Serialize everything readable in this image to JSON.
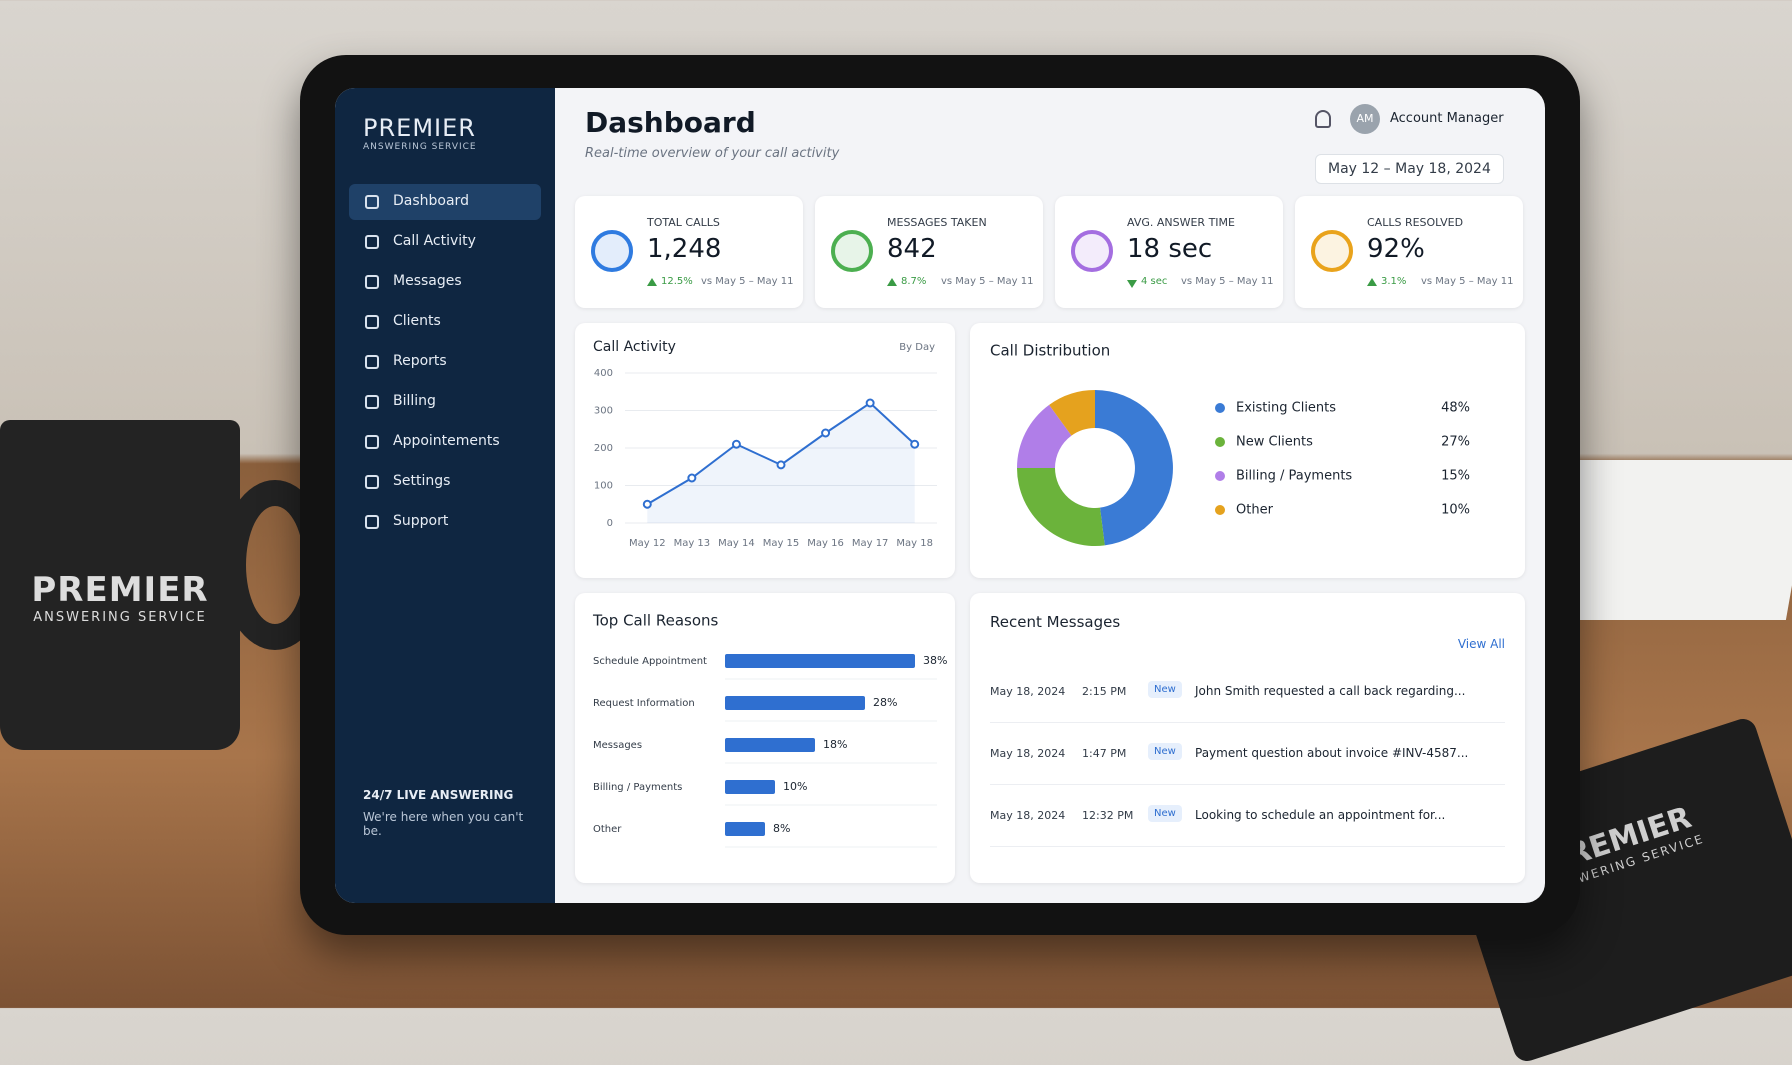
{
  "scene": {
    "mug": {
      "name": "PREMIER",
      "tagline": "ANSWERING SERVICE"
    },
    "notebook": {
      "name": "PREMIER",
      "tagline": "ANSWERING SERVICE"
    }
  },
  "sidebar": {
    "brand": {
      "name": "PREMIER",
      "tagline": "ANSWERING SERVICE"
    },
    "nav": [
      "Dashboard",
      "Call Activity",
      "Messages",
      "Clients",
      "Reports",
      "Billing",
      "Appointements",
      "Settings",
      "Support"
    ],
    "active": 0,
    "footer": {
      "title": "24/7 LIVE ANSWERING",
      "text": "We're here when you can't be."
    }
  },
  "header": {
    "title": "Dashboard",
    "subtitle": "Real-time overview of your call activity",
    "avatar": "AM",
    "user": "Account Manager",
    "date_range": "May 12 – May 18, 2024"
  },
  "kpis": [
    {
      "label": "TOTAL CALLS",
      "value": "1,248",
      "change": "12.5%",
      "compare": "vs May 5 – May 11",
      "trend": "up",
      "color": "#2f7be0"
    },
    {
      "label": "MESSAGES TAKEN",
      "value": "842",
      "change": "8.7%",
      "compare": "vs May 5 – May 11",
      "trend": "up",
      "color": "#4caf50"
    },
    {
      "label": "AVG. ANSWER TIME",
      "value": "18 sec",
      "change": "4 sec",
      "compare": "vs May 5 – May 11",
      "trend": "down",
      "color": "#a46ee0"
    },
    {
      "label": "CALLS RESOLVED",
      "value": "92%",
      "change": "3.1%",
      "compare": "vs May 5 – May 11",
      "trend": "up",
      "color": "#e9a31c"
    }
  ],
  "chart_data": [
    {
      "type": "line",
      "title": "Call Activity",
      "control": "By Day",
      "categories": [
        "May 12",
        "May 13",
        "May 14",
        "May 15",
        "May 16",
        "May 17",
        "May 18"
      ],
      "values": [
        50,
        120,
        210,
        155,
        240,
        320,
        210
      ],
      "color": "#2f6fd0",
      "ylim": [
        0,
        400
      ],
      "yticks": [
        0,
        100,
        200,
        300,
        400
      ],
      "grid": true
    },
    {
      "type": "pie",
      "title": "Call Distribution",
      "categories": [
        "Existing Clients",
        "New Clients",
        "Billing / Payments",
        "Other"
      ],
      "values": [
        48,
        27,
        15,
        10
      ],
      "value_labels": [
        "48%",
        "27%",
        "15%",
        "10%"
      ],
      "colors": [
        "#3a7bd5",
        "#6bb33b",
        "#b07ee8",
        "#e5a21e"
      ]
    },
    {
      "type": "hbar",
      "title": "Top Call Reasons",
      "categories": [
        "Schedule Appointment",
        "Request Information",
        "Messages",
        "Billing / Payments",
        "Other"
      ],
      "values": [
        38,
        28,
        18,
        10,
        8
      ],
      "value_labels": [
        "38%",
        "28%",
        "18%",
        "10%",
        "8%"
      ],
      "color": "#2f6fd0"
    }
  ],
  "messages": {
    "title": "Recent Messages",
    "link": "View All",
    "items": [
      {
        "date": "May 18, 2024",
        "time": "2:15 PM",
        "badge": "New",
        "text": "John Smith requested a call back regarding..."
      },
      {
        "date": "May 18, 2024",
        "time": "1:47 PM",
        "badge": "New",
        "text": "Payment question about invoice #INV-4587..."
      },
      {
        "date": "May 18, 2024",
        "time": "12:32 PM",
        "badge": "New",
        "text": "Looking to schedule an appointment for..."
      }
    ]
  }
}
